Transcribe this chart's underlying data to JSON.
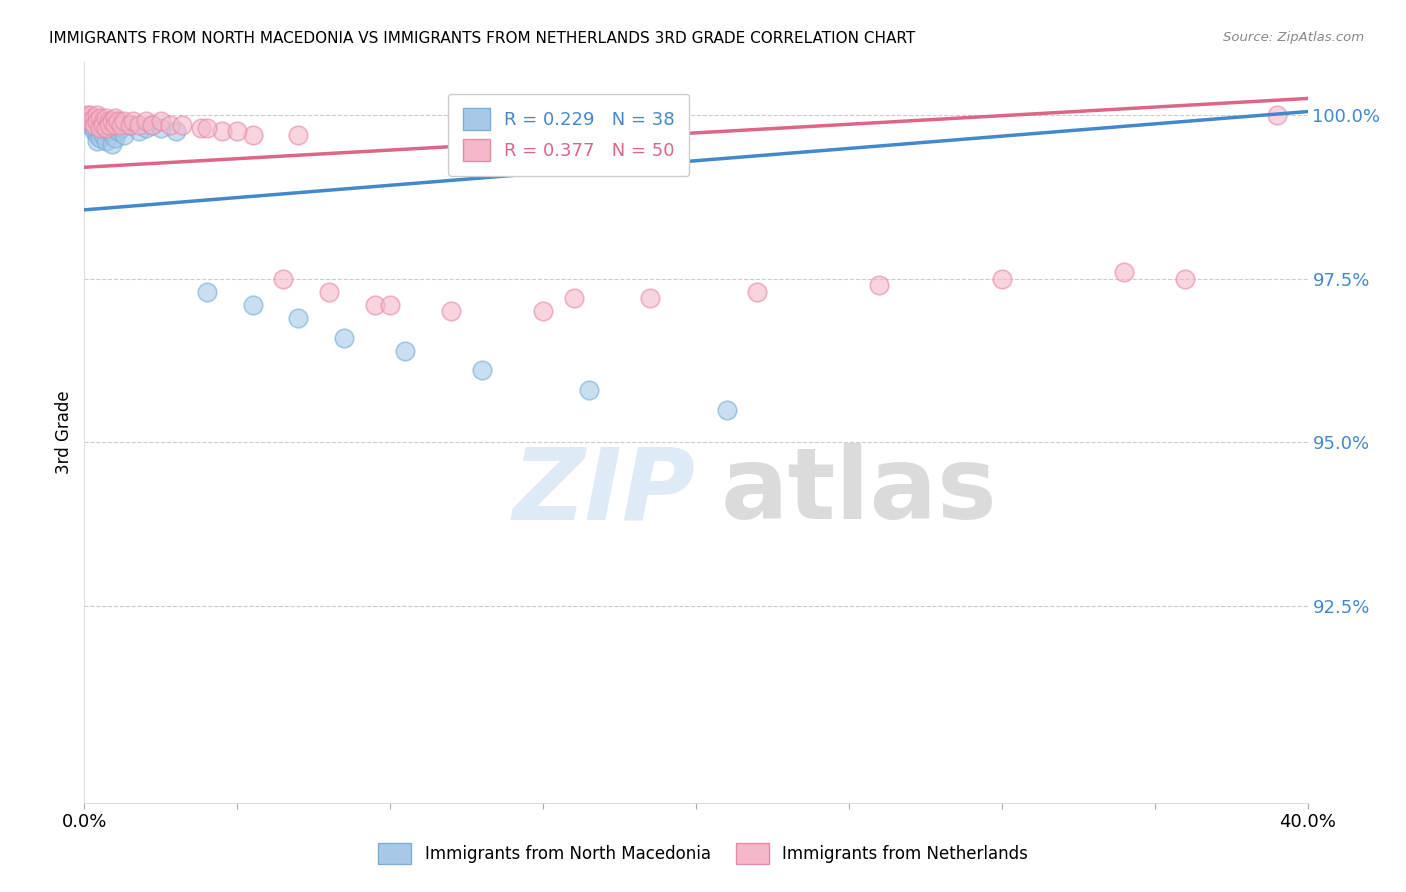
{
  "title": "IMMIGRANTS FROM NORTH MACEDONIA VS IMMIGRANTS FROM NETHERLANDS 3RD GRADE CORRELATION CHART",
  "source": "Source: ZipAtlas.com",
  "ylabel": "3rd Grade",
  "ytick_values": [
    1.0,
    0.975,
    0.95,
    0.925
  ],
  "xlim": [
    0.0,
    0.4
  ],
  "ylim": [
    0.895,
    1.008
  ],
  "R_blue": 0.229,
  "N_blue": 38,
  "R_pink": 0.377,
  "N_pink": 50,
  "legend_label_blue": "Immigrants from North Macedonia",
  "legend_label_pink": "Immigrants from Netherlands",
  "blue_color": "#a8c8e8",
  "pink_color": "#f4b8c8",
  "blue_edge": "#7aafd4",
  "pink_edge": "#e88aa8",
  "line_blue": "#4488cc",
  "line_pink": "#dd6688",
  "ytick_color": "#4488cc",
  "blue_scatter_x": [
    0.001,
    0.002,
    0.002,
    0.003,
    0.003,
    0.004,
    0.004,
    0.004,
    0.005,
    0.005,
    0.005,
    0.006,
    0.006,
    0.007,
    0.007,
    0.008,
    0.008,
    0.009,
    0.009,
    0.01,
    0.01,
    0.011,
    0.012,
    0.013,
    0.015,
    0.018,
    0.02,
    0.022,
    0.025,
    0.03,
    0.04,
    0.055,
    0.07,
    0.085,
    0.105,
    0.13,
    0.165,
    0.21
  ],
  "blue_scatter_y": [
    0.999,
    0.9995,
    0.9985,
    0.998,
    0.9975,
    0.999,
    0.997,
    0.996,
    0.999,
    0.998,
    0.9965,
    0.9985,
    0.997,
    0.9985,
    0.996,
    0.999,
    0.9975,
    0.998,
    0.9955,
    0.999,
    0.9965,
    0.9975,
    0.998,
    0.997,
    0.9985,
    0.9975,
    0.998,
    0.9985,
    0.998,
    0.9975,
    0.973,
    0.971,
    0.969,
    0.966,
    0.964,
    0.961,
    0.958,
    0.955
  ],
  "pink_scatter_x": [
    0.001,
    0.001,
    0.002,
    0.002,
    0.003,
    0.003,
    0.004,
    0.004,
    0.005,
    0.005,
    0.006,
    0.006,
    0.007,
    0.007,
    0.008,
    0.008,
    0.009,
    0.01,
    0.01,
    0.011,
    0.012,
    0.013,
    0.015,
    0.016,
    0.018,
    0.02,
    0.022,
    0.025,
    0.028,
    0.032,
    0.038,
    0.045,
    0.055,
    0.065,
    0.08,
    0.095,
    0.12,
    0.15,
    0.185,
    0.22,
    0.26,
    0.3,
    0.34,
    0.36,
    0.39,
    0.04,
    0.05,
    0.07,
    0.1,
    0.16
  ],
  "pink_scatter_y": [
    1.0,
    0.9995,
    1.0,
    0.999,
    0.9995,
    0.9985,
    1.0,
    0.999,
    0.9995,
    0.998,
    0.999,
    0.9985,
    0.9995,
    0.998,
    0.999,
    0.9985,
    0.999,
    0.9995,
    0.9985,
    0.999,
    0.9985,
    0.999,
    0.9985,
    0.999,
    0.9985,
    0.999,
    0.9985,
    0.999,
    0.9985,
    0.9985,
    0.998,
    0.9975,
    0.997,
    0.975,
    0.973,
    0.971,
    0.97,
    0.97,
    0.972,
    0.973,
    0.974,
    0.975,
    0.976,
    0.975,
    1.0,
    0.998,
    0.9975,
    0.997,
    0.971,
    0.972
  ]
}
